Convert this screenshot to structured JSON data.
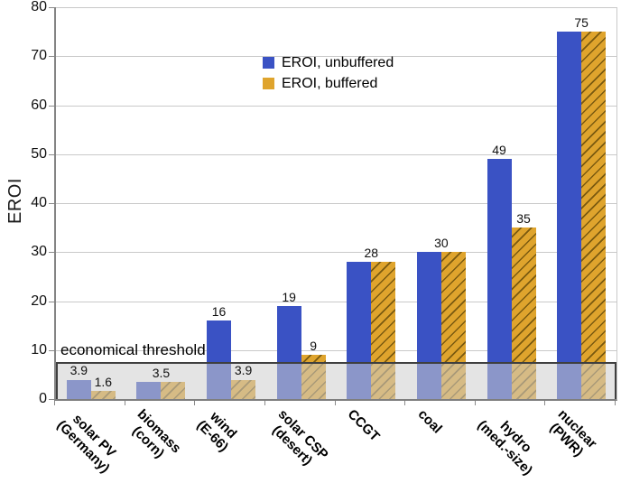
{
  "chart_data": {
    "type": "bar",
    "title": "",
    "xlabel": "",
    "ylabel": "EROI",
    "ylim": [
      0,
      80
    ],
    "yticks": [
      0,
      10,
      20,
      30,
      40,
      50,
      60,
      70,
      80
    ],
    "grid": "horizontal light gray lines every 10",
    "legend": {
      "position": "inside-upper-middle",
      "entries": [
        "EROI, unbuffered",
        "EROI, buffered"
      ]
    },
    "categories": [
      {
        "lines": [
          "solar PV",
          "(Germany)"
        ]
      },
      {
        "lines": [
          "biomass",
          "(corn)"
        ]
      },
      {
        "lines": [
          "wind",
          "(E-66)"
        ]
      },
      {
        "lines": [
          "solar CSP",
          "(desert)"
        ]
      },
      {
        "lines": [
          "CCGT"
        ]
      },
      {
        "lines": [
          "coal"
        ]
      },
      {
        "lines": [
          "hydro",
          "(med.-size)"
        ]
      },
      {
        "lines": [
          "nuclear",
          "(PWR)"
        ]
      }
    ],
    "series": [
      {
        "name": "EROI, unbuffered",
        "color": "#3a52c4",
        "hatch": false,
        "values": [
          3.9,
          3.5,
          16,
          19,
          28,
          30,
          49,
          75
        ]
      },
      {
        "name": "EROI, buffered",
        "color": "#dfa42d",
        "hatch": true,
        "hatch_color": "#7a5a10",
        "values": [
          1.6,
          3.5,
          3.9,
          9,
          28,
          30,
          35,
          75
        ]
      }
    ],
    "value_labels": [
      [
        "3.9",
        "1.6"
      ],
      [
        "3.5"
      ],
      [
        "16",
        "3.9"
      ],
      [
        "19",
        "9"
      ],
      [
        "28"
      ],
      [
        "30"
      ],
      [
        "49",
        "35"
      ],
      [
        "75"
      ]
    ],
    "threshold_band": {
      "label": "economical threshold",
      "from": 0,
      "to": 7.5,
      "fill": "rgba(206,206,206,0.55)",
      "border_color": "#3f3f3f"
    }
  },
  "colors": {
    "background": "#ffffff",
    "gridline": "#c9c9c9",
    "axis": "#808080",
    "text": "#111111"
  }
}
